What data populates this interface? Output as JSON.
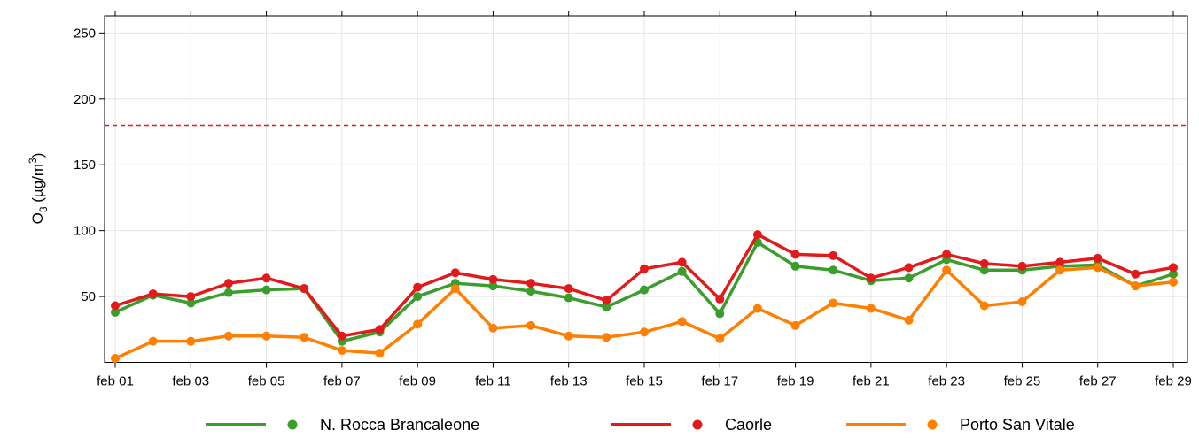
{
  "chart_data": {
    "type": "line",
    "ylabel_parts": [
      "O",
      "3",
      " (µg/m",
      "3",
      ")"
    ],
    "categories": [
      "feb 01",
      null,
      "feb 03",
      null,
      "feb 05",
      null,
      "feb 07",
      null,
      "feb 09",
      null,
      "feb 11",
      null,
      "feb 13",
      null,
      "feb 15",
      null,
      "feb 17",
      null,
      "feb 19",
      null,
      "feb 21",
      null,
      "feb 23",
      null,
      "feb 25",
      null,
      "feb 27",
      null,
      "feb 29"
    ],
    "series": [
      {
        "name": "N. Rocca Brancaleone",
        "color": "#3a9e2c",
        "values": [
          38,
          51,
          45,
          53,
          55,
          56,
          16,
          23,
          50,
          60,
          58,
          54,
          49,
          42,
          55,
          69,
          37,
          91,
          73,
          70,
          62,
          64,
          78,
          70,
          70,
          73,
          74,
          58,
          67
        ]
      },
      {
        "name": "Caorle",
        "color": "#e31a1c",
        "values": [
          43,
          52,
          50,
          60,
          64,
          56,
          20,
          25,
          57,
          68,
          63,
          60,
          56,
          47,
          71,
          76,
          48,
          97,
          82,
          81,
          64,
          72,
          82,
          75,
          73,
          76,
          79,
          67,
          72
        ]
      },
      {
        "name": "Porto San Vitale",
        "color": "#ff7f00",
        "values": [
          3,
          16,
          16,
          20,
          20,
          19,
          9,
          7,
          29,
          56,
          26,
          28,
          20,
          19,
          23,
          31,
          18,
          41,
          28,
          45,
          41,
          32,
          70,
          43,
          46,
          70,
          72,
          58,
          61
        ]
      }
    ],
    "hline": {
      "value": 180,
      "color": "#e31a1c"
    },
    "ylim": [
      0,
      263
    ],
    "yticks": [
      50,
      100,
      150,
      200,
      250
    ],
    "grid": true
  }
}
